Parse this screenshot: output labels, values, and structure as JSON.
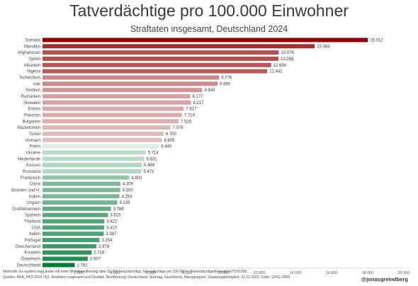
{
  "header": {
    "title": "Tatverdächtige pro 100.000 Einwohner",
    "subtitle": "Straftaten insgesamt, Deutschland 2024"
  },
  "footer": {
    "method": "Methodik: Es wurden nur Länder mit einer Wohnbevölkerung über 50.000 berücksichtigt. Tatverdächtige pro 100.000 = (Tatverdächtige/Einwohner)*100.000.",
    "sources": "Quellen: BKA, PKS 2024 T62, Straftaten insgesamt und Destatis, Bevölkerung: Deutschland, Stichtag, Geschlecht, Altersgruppen, Staatsangehörigkeit, 31.12.2023, Code: 12411-0009.",
    "handle": "@jonasgreindberg"
  },
  "chart_data": {
    "type": "bar",
    "orientation": "horizontal",
    "title": "Tatverdächtige pro 100.000 Einwohner",
    "subtitle": "Straftaten insgesamt, Deutschland 2024",
    "xlim": [
      0,
      20000
    ],
    "x_ticks": [
      "0",
      "2.000",
      "4.000",
      "6.000",
      "8.000",
      "10.000",
      "12.000",
      "14.000",
      "16.000",
      "18.000",
      "20.000"
    ],
    "grid": false,
    "color_scale": {
      "high": "#8b0000",
      "mid": "#ffffff",
      "low": "#0a7a3c"
    },
    "categories": [
      "Somalia",
      "Marokko",
      "Afghanistan",
      "Syrien",
      "Albanien",
      "Nigeria",
      "Tschechien",
      "Irak",
      "Serbien",
      "Rumänien",
      "Slowakei",
      "Eritrea",
      "Pakistan",
      "Bulgarien",
      "Mazedonien",
      "Türkei",
      "Vietnam",
      "Polen",
      "Ukraine",
      "Niederlande",
      "Kosovo",
      "Russland",
      "Frankreich",
      "China",
      "Bosnien und H.",
      "Indien",
      "Ungarn",
      "Großbritannien",
      "Spanien",
      "Thailand",
      "USA",
      "Italien",
      "Portugal",
      "Griechenland",
      "Kroatien",
      "Österreich",
      "Deutschland"
    ],
    "values": [
      18012,
      15064,
      13076,
      13058,
      12654,
      12441,
      9776,
      9690,
      8843,
      8177,
      8217,
      7817,
      7719,
      7528,
      7079,
      6700,
      6605,
      6440,
      5714,
      5631,
      5489,
      5471,
      4803,
      4309,
      4300,
      4254,
      4133,
      3788,
      3623,
      3422,
      3410,
      3387,
      3154,
      2979,
      2718,
      2507,
      1782
    ],
    "value_labels": [
      "18.012",
      "15.064",
      "13.076",
      "13.058",
      "12.654",
      "12.441",
      "9.776",
      "9.690",
      "8.843",
      "8.177",
      "8.217",
      "7.817",
      "7.719",
      "7.528",
      "7.079",
      "6.700",
      "6.605",
      "6.440",
      "5.714",
      "5.631",
      "5.489",
      "5.471",
      "4.803",
      "4.309",
      "4.300",
      "4.254",
      "4.133",
      "3.788",
      "3.623",
      "3.422",
      "3.410",
      "3.387",
      "3.154",
      "2.979",
      "2.718",
      "2.507",
      "1.782"
    ]
  }
}
